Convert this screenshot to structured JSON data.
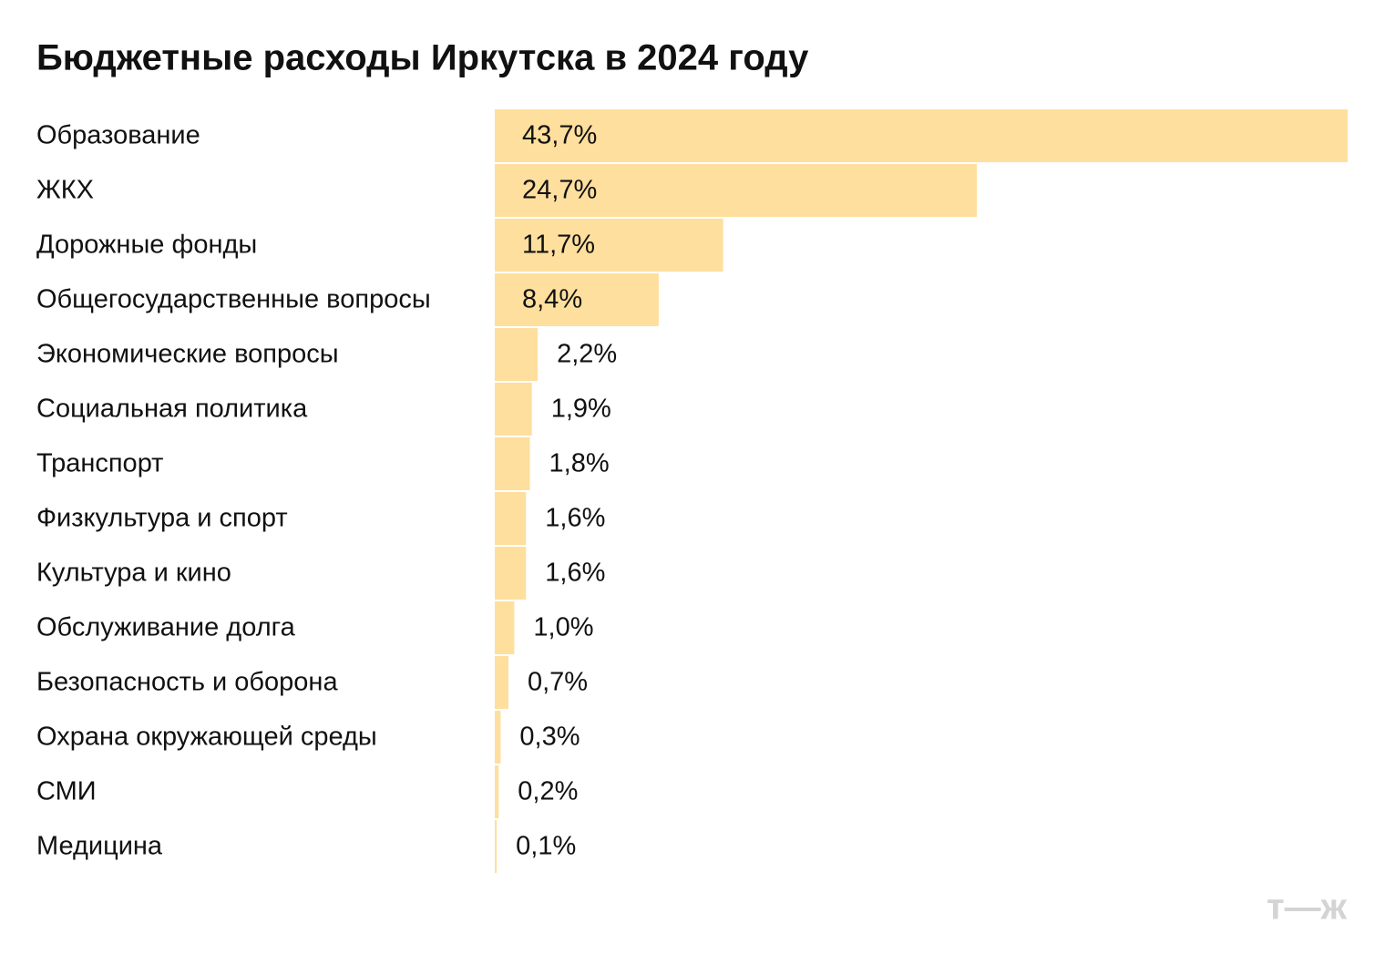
{
  "chart_data": {
    "type": "bar",
    "orientation": "horizontal",
    "title": "Бюджетные расходы Иркутска в 2024 году",
    "categories": [
      "Образование",
      "ЖКХ",
      "Дорожные фонды",
      "Общегосударственные вопросы",
      "Экономические вопросы",
      "Социальная политика",
      "Транспорт",
      "Физкультура и спорт",
      "Культура и кино",
      "Обслуживание долга",
      "Безопасность и оборона",
      "Охрана окружающей среды",
      "СМИ",
      "Медицина"
    ],
    "values": [
      43.7,
      24.7,
      11.7,
      8.4,
      2.2,
      1.9,
      1.8,
      1.6,
      1.6,
      1.0,
      0.7,
      0.3,
      0.2,
      0.1
    ],
    "value_labels": [
      "43,7%",
      "24,7%",
      "11,7%",
      "8,4%",
      "2,2%",
      "1,9%",
      "1,8%",
      "1,6%",
      "1,6%",
      "1,0%",
      "0,7%",
      "0,3%",
      "0,2%",
      "0,1%"
    ],
    "color": "#ffdf9e",
    "logo": "т—ж"
  }
}
